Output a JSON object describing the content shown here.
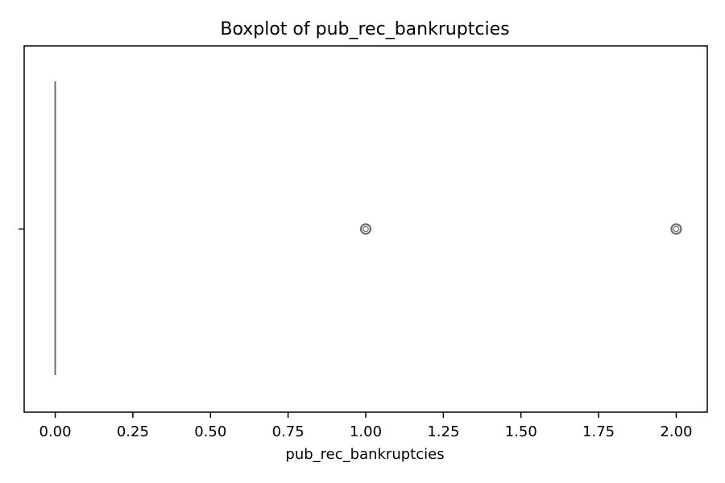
{
  "chart_data": {
    "type": "boxplot",
    "title": "Boxplot of pub_rec_bankruptcies",
    "xlabel": "pub_rec_bankruptcies",
    "ylabel": "",
    "xlim": [
      -0.1,
      2.1
    ],
    "x_ticks": [
      0.0,
      0.25,
      0.5,
      0.75,
      1.0,
      1.25,
      1.5,
      1.75,
      2.0
    ],
    "x_tick_labels": [
      "0.00",
      "0.25",
      "0.50",
      "0.75",
      "1.00",
      "1.25",
      "1.50",
      "1.75",
      "2.00"
    ],
    "orientation": "horizontal",
    "grid": false,
    "box": {
      "min": 0,
      "q1": 0,
      "median": 0,
      "q3": 0,
      "max": 0
    },
    "outliers": [
      1,
      2
    ],
    "colors": {
      "box": "#6d6d6d",
      "outlier": "#6d6d6d",
      "axes": "#000000"
    }
  }
}
